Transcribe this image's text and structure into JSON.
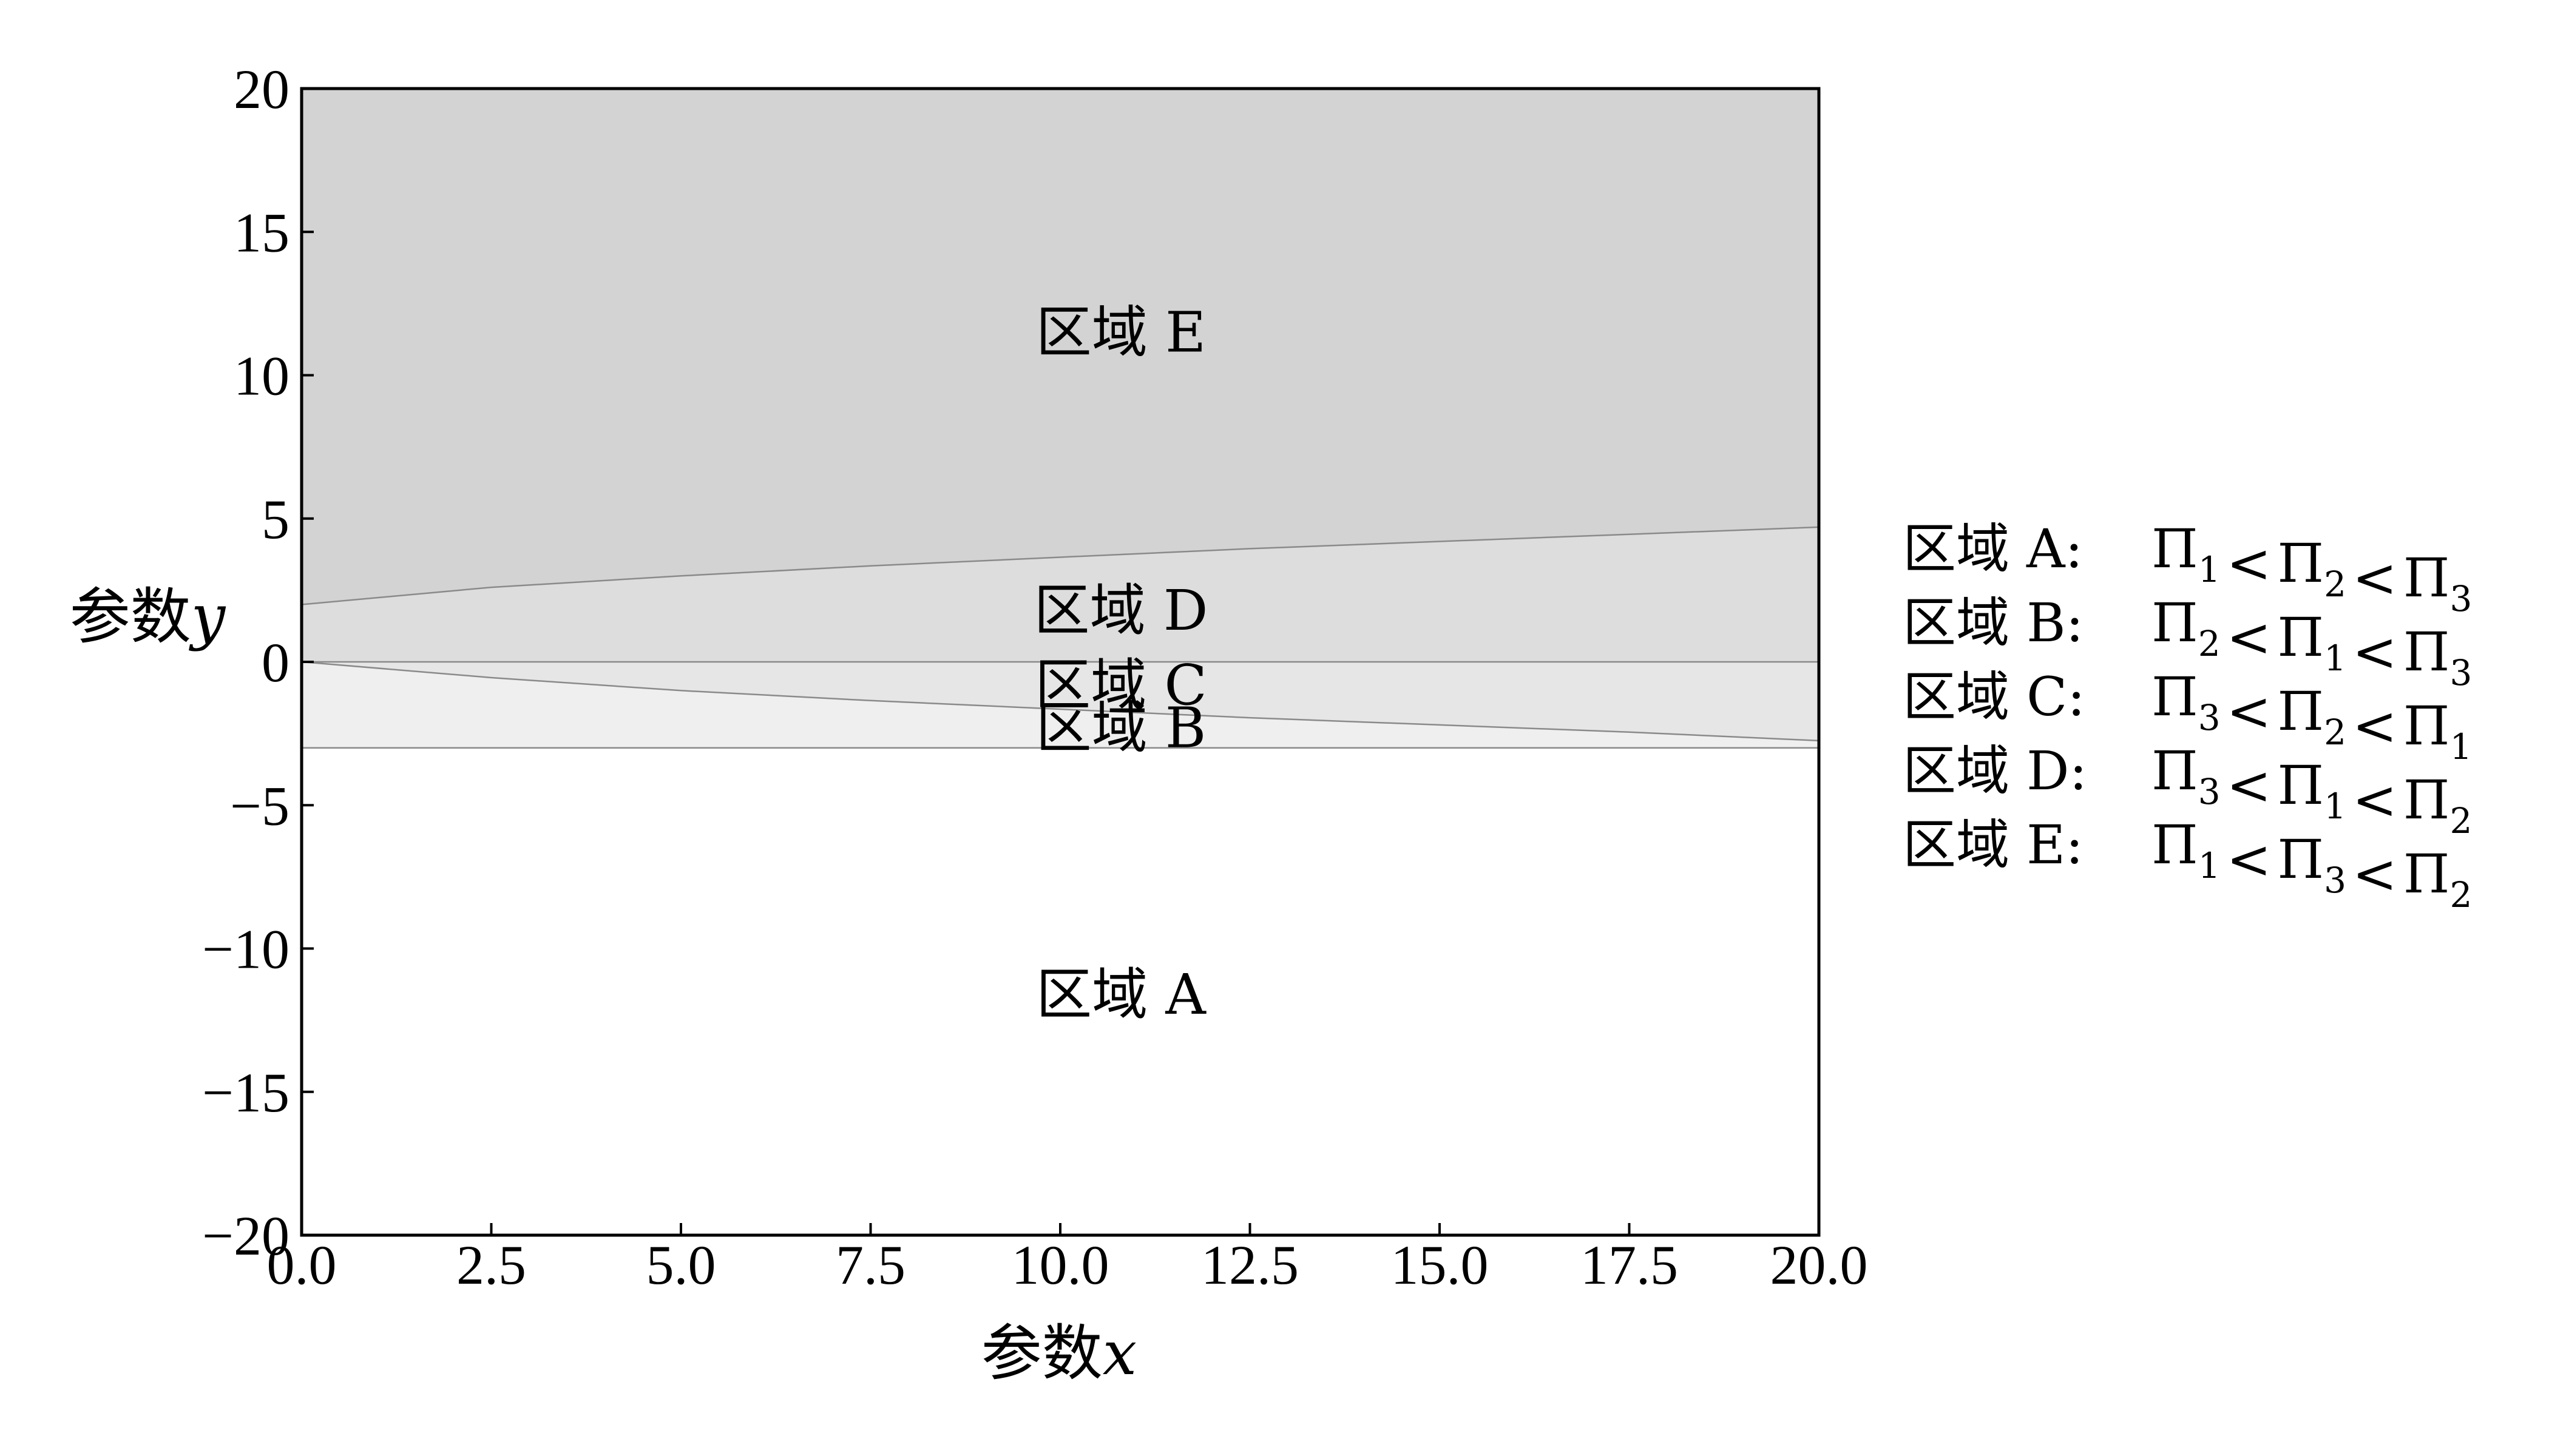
{
  "chart_data": {
    "type": "area",
    "xlabel": {
      "prefix": "参数",
      "var": "x"
    },
    "ylabel": {
      "prefix": "参数",
      "var": "y"
    },
    "xlim": [
      0,
      20
    ],
    "ylim": [
      -20,
      20
    ],
    "x_ticks": [
      0,
      2.5,
      5,
      7.5,
      10,
      12.5,
      15,
      17.5,
      20
    ],
    "x_tick_labels": [
      "0.0",
      "2.5",
      "5.0",
      "7.5",
      "10.0",
      "12.5",
      "15.0",
      "17.5",
      "20.0"
    ],
    "y_ticks": [
      20,
      15,
      10,
      5,
      0,
      -5,
      -10,
      -15,
      -20
    ],
    "y_tick_labels": [
      "20",
      "15",
      "10",
      "5",
      "0",
      "−5",
      "−10",
      "−15",
      "−20"
    ],
    "grid": false,
    "boundaries": {
      "upper_curve": {
        "x": [
          0,
          2.5,
          5,
          7.5,
          10,
          12.5,
          15,
          17.5,
          20
        ],
        "y": [
          2.0,
          2.6,
          3.0,
          3.35,
          3.65,
          3.95,
          4.2,
          4.45,
          4.7
        ]
      },
      "lower_curve": {
        "x": [
          0,
          2.5,
          5,
          7.5,
          10,
          12.5,
          15,
          17.5,
          20
        ],
        "y": [
          0,
          -0.55,
          -1.0,
          -1.35,
          -1.65,
          -1.95,
          -2.2,
          -2.45,
          -2.75
        ]
      },
      "zero_line": 0,
      "flat_line": -3
    },
    "regions": [
      {
        "id": "E",
        "label": "区域  E",
        "fill": "#d3d3d3",
        "anchor": [
          10.8,
          11.5
        ]
      },
      {
        "id": "D",
        "label": "区域  D",
        "fill": "#dddddd",
        "anchor": [
          10.8,
          1.8
        ]
      },
      {
        "id": "C",
        "label": "区域  C",
        "fill": "#e6e6e6",
        "anchor": [
          10.8,
          -0.8
        ]
      },
      {
        "id": "B",
        "label": "区域  B",
        "fill": "#efefef",
        "anchor": [
          10.8,
          -2.3
        ]
      },
      {
        "id": "A",
        "label": "区域  A",
        "fill": "#ffffff",
        "anchor": [
          10.8,
          -11.6
        ]
      }
    ],
    "legend": [
      {
        "text": "区域  A:",
        "order": [
          "1",
          "2",
          "3"
        ]
      },
      {
        "text": "区域  B:",
        "order": [
          "2",
          "1",
          "3"
        ]
      },
      {
        "text": "区域  C:",
        "order": [
          "3",
          "2",
          "1"
        ]
      },
      {
        "text": "区域  D:",
        "order": [
          "3",
          "1",
          "2"
        ]
      },
      {
        "text": "区域  E:",
        "order": [
          "1",
          "3",
          "2"
        ]
      }
    ],
    "legend_placement": "right",
    "pi_symbol": "Π",
    "less_than": "<"
  }
}
